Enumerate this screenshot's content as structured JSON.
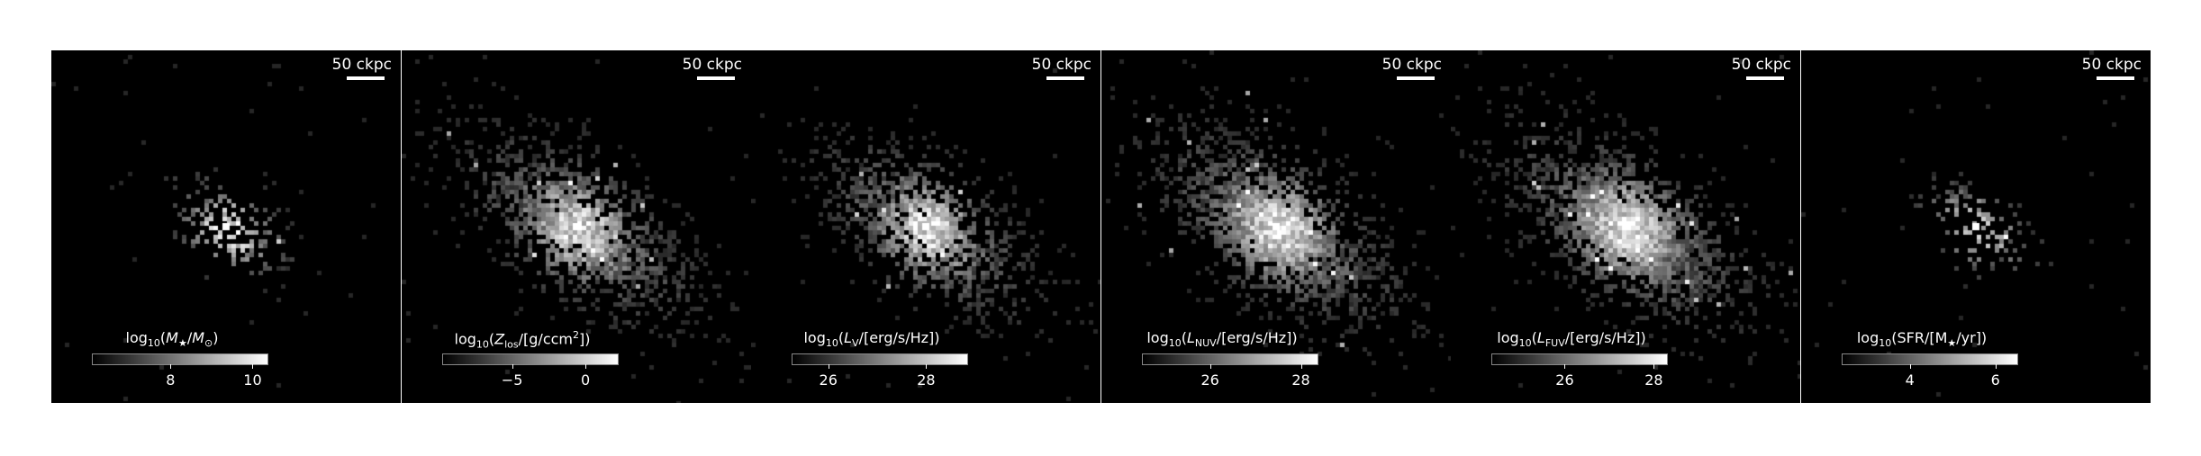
{
  "figure": {
    "panels": [
      {
        "id": "stellar-mass",
        "scale_bar": "50 ckpc",
        "colorbar": {
          "label_parts": [
            "log",
            "10",
            "(",
            "M",
            "★",
            "/",
            "M",
            "⊙",
            ")"
          ],
          "ticks": [
            {
              "label": "8",
              "frac": 0.45
            },
            {
              "label": "10",
              "frac": 0.92
            }
          ]
        },
        "map": {
          "core": 1.0,
          "spread": 0.18,
          "density": 0.35
        }
      },
      {
        "id": "metallicity",
        "scale_bar": "50 ckpc",
        "colorbar": {
          "label_parts": [
            "log",
            "10",
            "(",
            "Z",
            "los",
            "/[g/ccm",
            "2",
            "])"
          ],
          "ticks": [
            {
              "label": "−5",
              "frac": 0.4
            },
            {
              "label": "0",
              "frac": 0.82
            }
          ]
        },
        "map": {
          "core": 0.85,
          "spread": 0.42,
          "density": 0.75
        }
      },
      {
        "id": "v-band-luminosity",
        "scale_bar": "50 ckpc",
        "colorbar": {
          "label_parts": [
            "log",
            "10",
            "(",
            "L",
            "V",
            "/[erg/s/Hz])"
          ],
          "ticks": [
            {
              "label": "26",
              "frac": 0.21
            },
            {
              "label": "28",
              "frac": 0.77
            }
          ]
        },
        "map": {
          "core": 0.9,
          "spread": 0.38,
          "density": 0.7
        }
      },
      {
        "id": "nuv-luminosity",
        "scale_bar": "50 ckpc",
        "colorbar": {
          "label_parts": [
            "log",
            "10",
            "(",
            "L",
            "NUV",
            "/[erg/s/Hz])"
          ],
          "ticks": [
            {
              "label": "26",
              "frac": 0.39
            },
            {
              "label": "28",
              "frac": 0.91
            }
          ]
        },
        "map": {
          "core": 0.95,
          "spread": 0.45,
          "density": 0.82
        }
      },
      {
        "id": "fuv-luminosity",
        "scale_bar": "50 ckpc",
        "colorbar": {
          "label_parts": [
            "log",
            "10",
            "(",
            "L",
            "FUV",
            "/[erg/s/Hz])"
          ],
          "ticks": [
            {
              "label": "26",
              "frac": 0.42
            },
            {
              "label": "28",
              "frac": 0.93
            }
          ]
        },
        "map": {
          "core": 0.95,
          "spread": 0.45,
          "density": 0.85
        }
      },
      {
        "id": "star-formation-rate",
        "scale_bar": "50 ckpc",
        "colorbar": {
          "label_parts": [
            "log",
            "10",
            "(SFR/[M",
            "★",
            "/yr])"
          ],
          "ticks": [
            {
              "label": "4",
              "frac": 0.39
            },
            {
              "label": "6",
              "frac": 0.88
            }
          ]
        },
        "map": {
          "core": 0.85,
          "spread": 0.16,
          "density": 0.28
        }
      }
    ]
  }
}
